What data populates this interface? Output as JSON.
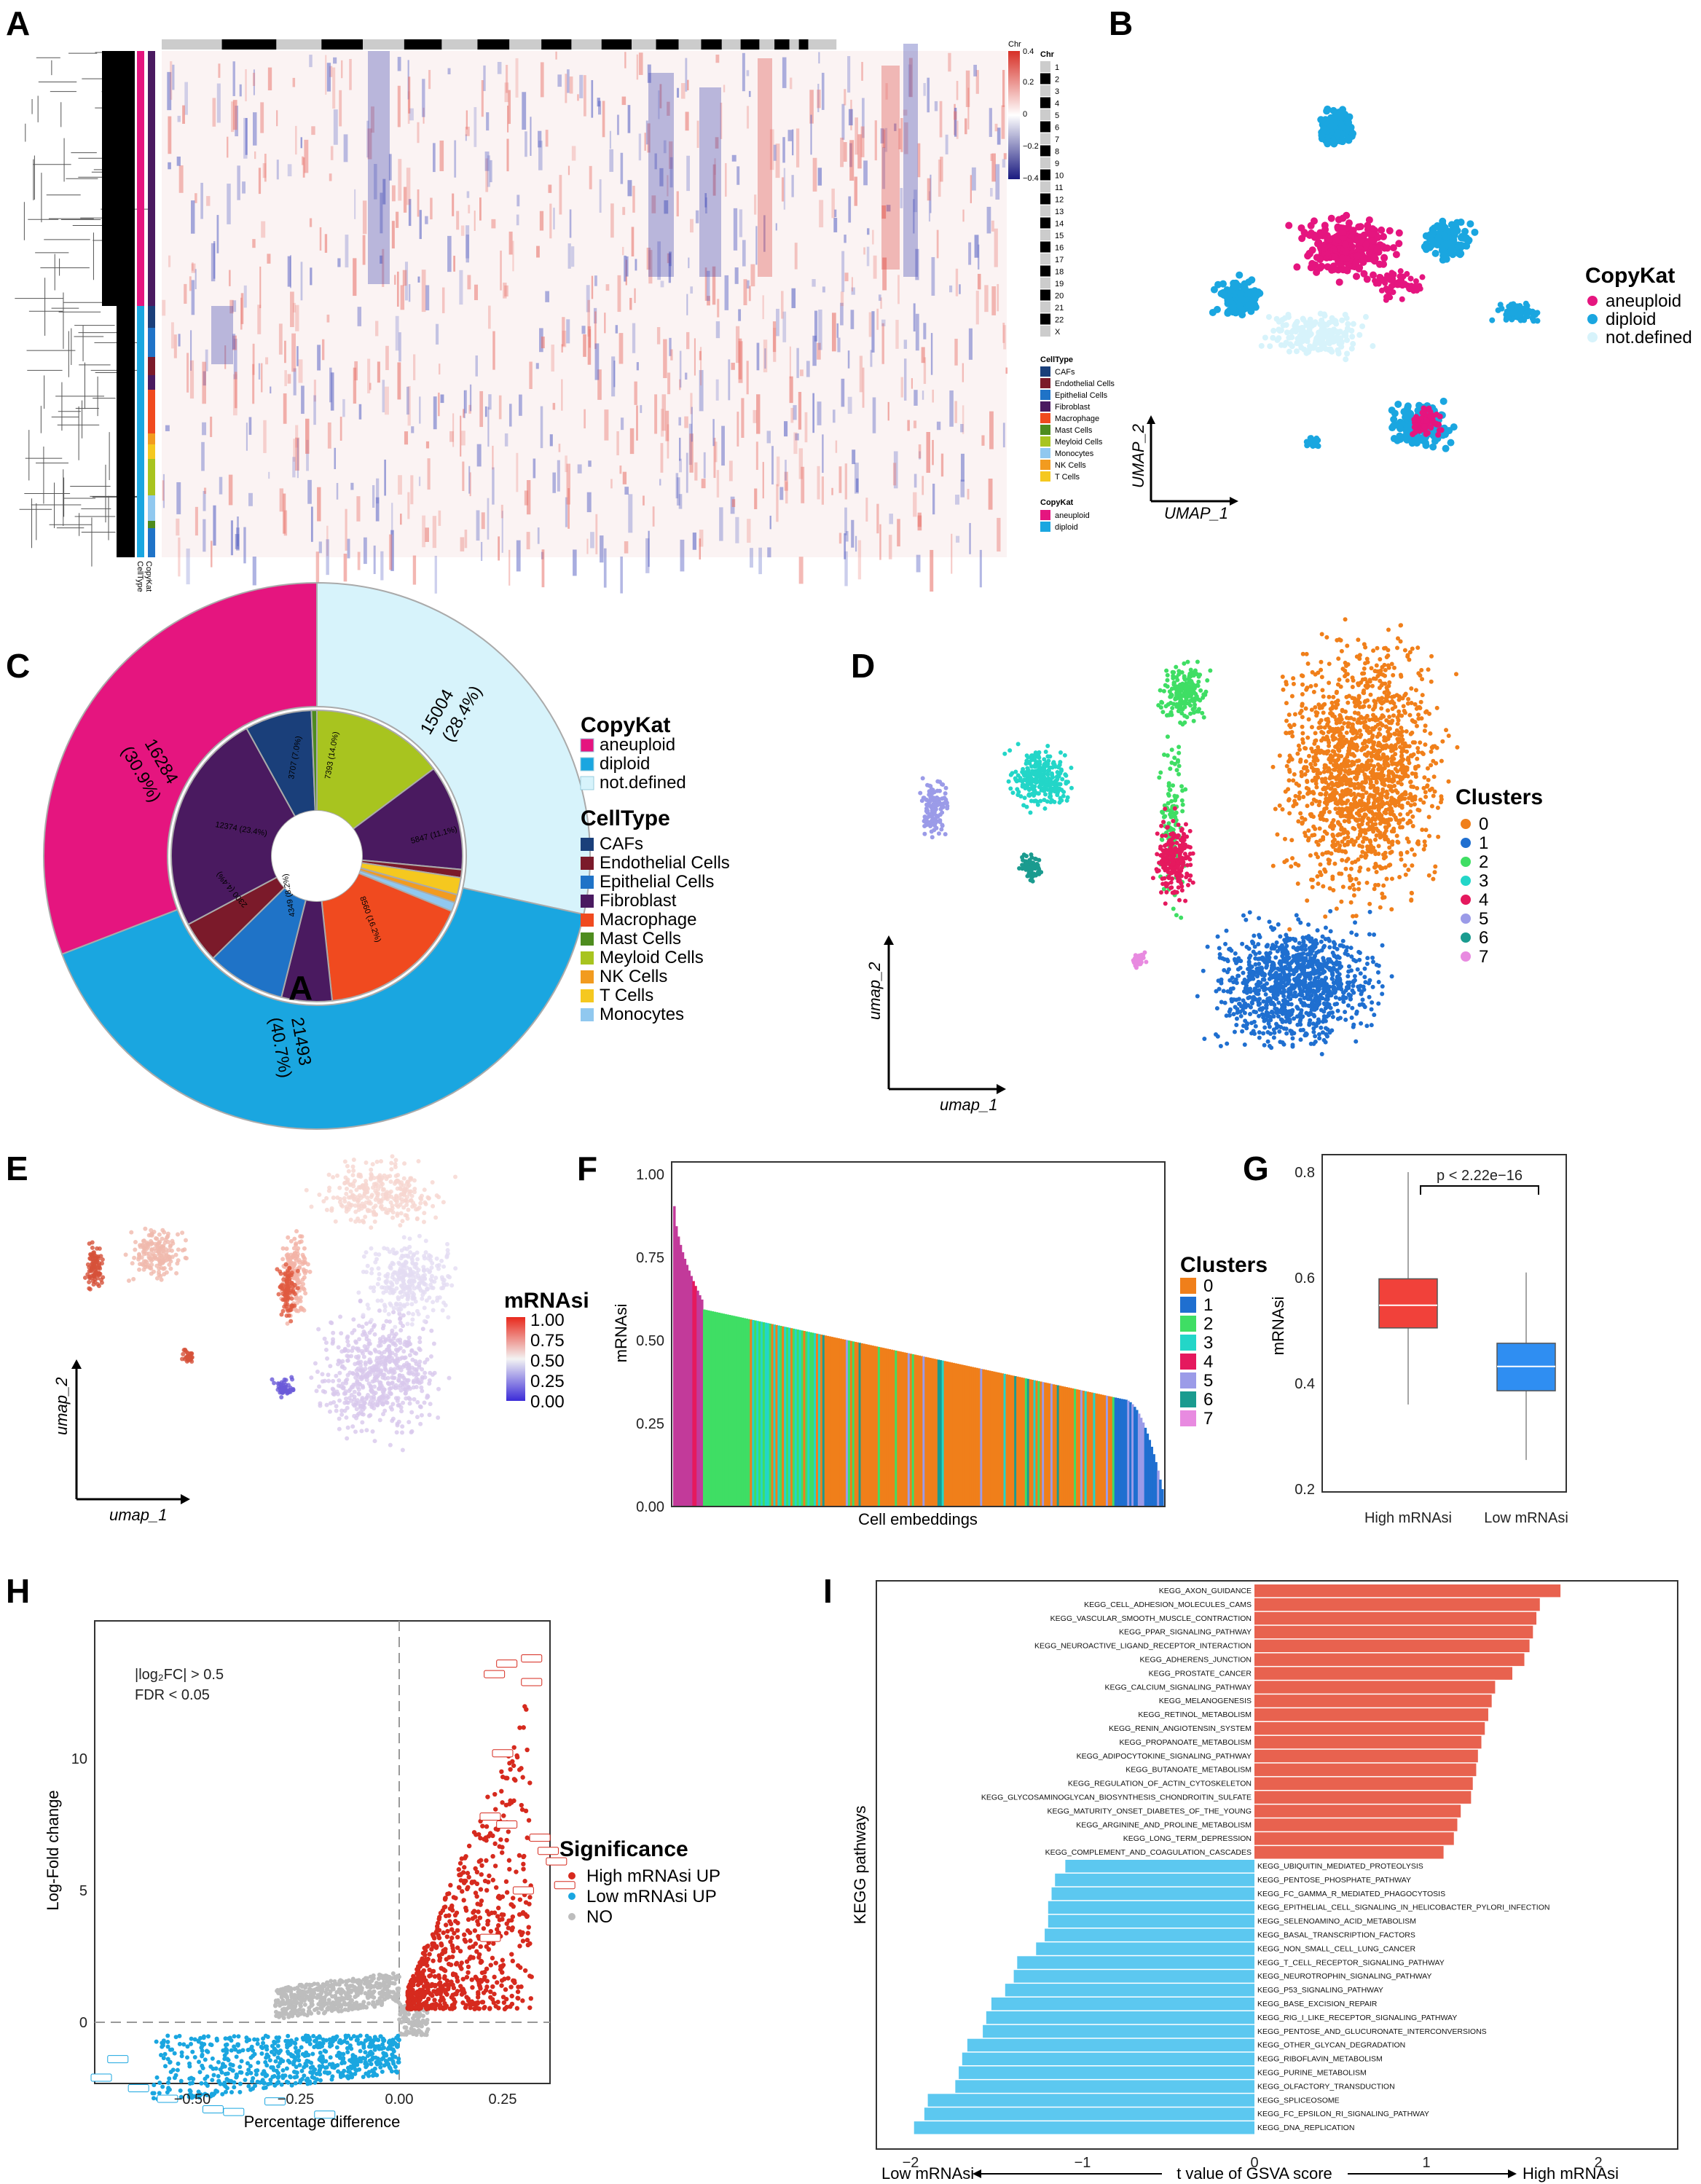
{
  "panels": {
    "a": "A",
    "b": "B",
    "c": "C",
    "d": "D",
    "e": "E",
    "f": "F",
    "g": "G",
    "h": "H",
    "i": "I"
  },
  "colors": {
    "aneuploid": "#e5157f",
    "diploid": "#1aa6e0",
    "notdef": "#d7f3fb",
    "up": "#e8624f",
    "down": "#5cc8f0",
    "red": "#d62a1e",
    "gray": "#bdbdbd"
  },
  "panel_a": {
    "scale_title": "Chr",
    "scale_ticks": [
      "0.4",
      "0.2",
      "0",
      "−0.2",
      "−0.4"
    ],
    "chr_title": "Chr",
    "chromosomes": [
      "1",
      "2",
      "3",
      "4",
      "5",
      "6",
      "7",
      "8",
      "9",
      "10",
      "11",
      "12",
      "13",
      "14",
      "15",
      "16",
      "17",
      "18",
      "19",
      "20",
      "21",
      "22",
      "X"
    ],
    "celltype_title": "CellType",
    "celltypes": [
      {
        "n": "CAFs",
        "c": "#1a3f7a"
      },
      {
        "n": "Endothelial Cells",
        "c": "#7b1a2a"
      },
      {
        "n": "Epithelial Cells",
        "c": "#1f73c7"
      },
      {
        "n": "Fibroblast",
        "c": "#4a1a60"
      },
      {
        "n": "Macrophage",
        "c": "#f04a1f"
      },
      {
        "n": "Mast Cells",
        "c": "#4e8c1e"
      },
      {
        "n": "Meyloid Cells",
        "c": "#a8c41f"
      },
      {
        "n": "Monocytes",
        "c": "#90c8ef"
      },
      {
        "n": "NK Cells",
        "c": "#f29b1f"
      },
      {
        "n": "T Cells",
        "c": "#f5c81f"
      }
    ],
    "copykat_title": "CopyKat",
    "copykat": [
      "aneuploid",
      "diploid"
    ],
    "side_labels": [
      "CopyKat",
      "CellType"
    ]
  },
  "panel_b": {
    "legend_title": "CopyKat",
    "legend": [
      "aneuploid",
      "diploid",
      "not.defined"
    ],
    "xlabel": "UMAP_1",
    "ylabel": "UMAP_2"
  },
  "chart_data": [
    {
      "type": "pie",
      "panel": "C",
      "title": "",
      "outer": [
        {
          "label": "aneuploid",
          "value": 16284,
          "pct": "30.9%"
        },
        {
          "label": "not.defined",
          "value": 15004,
          "pct": "28.4%"
        },
        {
          "label": "diploid",
          "value": 21493,
          "pct": "40.7%"
        }
      ],
      "inner": [
        {
          "label": "Meyloid Cells",
          "value": 7393,
          "pct": "14.0%"
        },
        {
          "label": "Fibroblast",
          "value": 5847,
          "pct": "11.1%"
        },
        {
          "label": "Endothelial Cells",
          "value": 450
        },
        {
          "label": "T Cells",
          "value": 950
        },
        {
          "label": "NK Cells",
          "value": 450
        },
        {
          "label": "Monocytes",
          "value": 500
        },
        {
          "label": "Macrophage",
          "value": 8560,
          "pct": "16.2%"
        },
        {
          "label": "Fibroblast",
          "value": 2800
        },
        {
          "label": "Epithelial Cells",
          "value": 4349,
          "pct": "8.2%"
        },
        {
          "label": "Endothelial Cells",
          "value": 2300,
          "pct": "4.4%"
        },
        {
          "label": "Fibroblast",
          "value": 12374,
          "pct": "23.4%"
        },
        {
          "label": "CAFs",
          "value": 3707,
          "pct": "7.0%"
        },
        {
          "label": "Mast Cells",
          "value": 300
        }
      ],
      "outer_labels": [
        "16284",
        "(30.9%)",
        "15004",
        "(28.4%)",
        "21493",
        "(40.7%)"
      ],
      "inner_labels": [
        "7393 (14.0%)",
        "5847 (11.1%)",
        "8560 (16.2%)",
        "4349 (8.2%)",
        "2300 (4.4%)",
        "12374 (23.4%)",
        "3707 (7.0%)"
      ],
      "stray_label": "A"
    },
    {
      "type": "scatter",
      "panel": "D",
      "legend_title": "Clusters",
      "clusters": [
        "0",
        "1",
        "2",
        "3",
        "4",
        "5",
        "6",
        "7"
      ],
      "xlabel": "umap_1",
      "ylabel": "umap_2"
    },
    {
      "type": "scatter",
      "panel": "E",
      "legend_title": "mRNAsi",
      "color_ticks": [
        "1.00",
        "0.75",
        "0.50",
        "0.25",
        "0.00"
      ],
      "xlabel": "umap_1",
      "ylabel": "umap_2"
    },
    {
      "type": "bar",
      "panel": "F",
      "ylabel": "mRNAsi",
      "xlabel": "Cell embeddings",
      "ylim": [
        0,
        1
      ],
      "yticks": [
        "0.00",
        "0.25",
        "0.50",
        "0.75",
        "1.00"
      ],
      "legend_title": "Clusters",
      "clusters": [
        "0",
        "1",
        "2",
        "3",
        "4",
        "5",
        "6",
        "7"
      ]
    },
    {
      "type": "box",
      "panel": "G",
      "categories": [
        "High mRNAsi",
        "Low mRNAsi"
      ],
      "ylabel": "mRNAsi",
      "ylim": [
        0.2,
        0.8
      ],
      "yticks": [
        "0.2",
        "0.4",
        "0.6",
        "0.8"
      ],
      "annotation": "p < 2.22e−16",
      "series": [
        {
          "name": "High mRNAsi",
          "min": 0.36,
          "q1": 0.505,
          "median": 0.548,
          "q3": 0.598,
          "max": 0.8
        },
        {
          "name": "Low mRNAsi",
          "min": 0.255,
          "q1": 0.386,
          "median": 0.432,
          "q3": 0.476,
          "max": 0.61
        }
      ]
    },
    {
      "type": "scatter",
      "panel": "H",
      "xlabel": "Percentage difference",
      "ylabel": "Log-Fold change",
      "xticks": [
        "−0.50",
        "−0.25",
        "0.00",
        "0.25"
      ],
      "yticks": [
        "0",
        "5",
        "10"
      ],
      "thresholds": [
        "|log₂FC| > 0.5",
        "FDR < 0.05"
      ],
      "legend_title": "Significance",
      "legend": [
        "High mRNAsi UP",
        "Low mRNAsi UP",
        "NO"
      ]
    },
    {
      "type": "bar",
      "panel": "I",
      "ylabel": "KEGG pathways",
      "xlabel": "t value of GSVA score",
      "left_note": "Low mRNAsi",
      "right_note": "High mRNAsi",
      "xticks": [
        "−2",
        "−1",
        "0",
        "1",
        "2"
      ],
      "xlim": [
        -2.1,
        2.1
      ],
      "up": [
        {
          "n": "KEGG_AXON_GUIDANCE",
          "v": 1.78
        },
        {
          "n": "KEGG_CELL_ADHESION_MOLECULES_CAMS",
          "v": 1.66
        },
        {
          "n": "KEGG_VASCULAR_SMOOTH_MUSCLE_CONTRACTION",
          "v": 1.64
        },
        {
          "n": "KEGG_PPAR_SIGNALING_PATHWAY",
          "v": 1.62
        },
        {
          "n": "KEGG_NEUROACTIVE_LIGAND_RECEPTOR_INTERACTION",
          "v": 1.6
        },
        {
          "n": "KEGG_ADHERENS_JUNCTION",
          "v": 1.57
        },
        {
          "n": "KEGG_PROSTATE_CANCER",
          "v": 1.5
        },
        {
          "n": "KEGG_CALCIUM_SIGNALING_PATHWAY",
          "v": 1.4
        },
        {
          "n": "KEGG_MELANOGENESIS",
          "v": 1.38
        },
        {
          "n": "KEGG_RETINOL_METABOLISM",
          "v": 1.36
        },
        {
          "n": "KEGG_RENIN_ANGIOTENSIN_SYSTEM",
          "v": 1.34
        },
        {
          "n": "KEGG_PROPANOATE_METABOLISM",
          "v": 1.32
        },
        {
          "n": "KEGG_ADIPOCYTOKINE_SIGNALING_PATHWAY",
          "v": 1.3
        },
        {
          "n": "KEGG_BUTANOATE_METABOLISM",
          "v": 1.29
        },
        {
          "n": "KEGG_REGULATION_OF_ACTIN_CYTOSKELETON",
          "v": 1.27
        },
        {
          "n": "KEGG_GLYCOSAMINOGLYCAN_BIOSYNTHESIS_CHONDROITIN_SULFATE",
          "v": 1.26
        },
        {
          "n": "KEGG_MATURITY_ONSET_DIABETES_OF_THE_YOUNG",
          "v": 1.2
        },
        {
          "n": "KEGG_ARGININE_AND_PROLINE_METABOLISM",
          "v": 1.18
        },
        {
          "n": "KEGG_LONG_TERM_DEPRESSION",
          "v": 1.16
        },
        {
          "n": "KEGG_COMPLEMENT_AND_COAGULATION_CASCADES",
          "v": 1.1
        }
      ],
      "down": [
        {
          "n": "KEGG_UBIQUITIN_MEDIATED_PROTEOLYSIS",
          "v": -1.1
        },
        {
          "n": "KEGG_PENTOSE_PHOSPHATE_PATHWAY",
          "v": -1.16
        },
        {
          "n": "KEGG_FC_GAMMA_R_MEDIATED_PHAGOCYTOSIS",
          "v": -1.18
        },
        {
          "n": "KEGG_EPITHELIAL_CELL_SIGNALING_IN_HELICOBACTER_PYLORI_INFECTION",
          "v": -1.2
        },
        {
          "n": "KEGG_SELENOAMINO_ACID_METABOLISM",
          "v": -1.2
        },
        {
          "n": "KEGG_BASAL_TRANSCRIPTION_FACTORS",
          "v": -1.22
        },
        {
          "n": "KEGG_NON_SMALL_CELL_LUNG_CANCER",
          "v": -1.27
        },
        {
          "n": "KEGG_T_CELL_RECEPTOR_SIGNALING_PATHWAY",
          "v": -1.38
        },
        {
          "n": "KEGG_NEUROTROPHIN_SIGNALING_PATHWAY",
          "v": -1.4
        },
        {
          "n": "KEGG_P53_SIGNALING_PATHWAY",
          "v": -1.45
        },
        {
          "n": "KEGG_BASE_EXCISION_REPAIR",
          "v": -1.53
        },
        {
          "n": "KEGG_RIG_I_LIKE_RECEPTOR_SIGNALING_PATHWAY",
          "v": -1.56
        },
        {
          "n": "KEGG_PENTOSE_AND_GLUCURONATE_INTERCONVERSIONS",
          "v": -1.58
        },
        {
          "n": "KEGG_OTHER_GLYCAN_DEGRADATION",
          "v": -1.67
        },
        {
          "n": "KEGG_RIBOFLAVIN_METABOLISM",
          "v": -1.7
        },
        {
          "n": "KEGG_PURINE_METABOLISM",
          "v": -1.72
        },
        {
          "n": "KEGG_OLFACTORY_TRANSDUCTION",
          "v": -1.74
        },
        {
          "n": "KEGG_SPLICEOSOME",
          "v": -1.9
        },
        {
          "n": "KEGG_FC_EPSILON_RI_SIGNALING_PATHWAY",
          "v": -1.92
        },
        {
          "n": "KEGG_DNA_REPLICATION",
          "v": -1.98
        }
      ]
    }
  ]
}
